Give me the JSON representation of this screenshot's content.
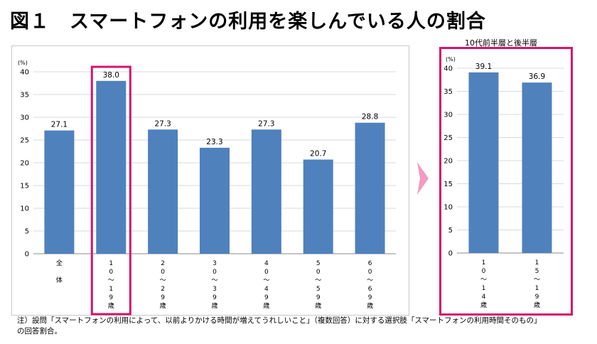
{
  "title": "図１　スマートフォンの利用を楽しんでいる人の割合",
  "right_header": "10代前半層と後半層",
  "note_lines": [
    "注）設問「スマートフォンの利用によって、以前よりかける時間が増えてうれしいこと」（複数回答）に対する選択肢「スマートフォンの利用時間そのもの」",
    "の回答割合。"
  ],
  "colors": {
    "bar": "#4f81bd",
    "highlight": "#d4156b",
    "arrow": "#f39bc2",
    "grid": "#d9d9d9"
  },
  "chart_data": [
    {
      "type": "bar",
      "unit_label": "(%)",
      "ylim": [
        0,
        40
      ],
      "yticks": [
        "0",
        "5",
        "10",
        "15",
        "20",
        "25",
        "30",
        "35",
        "40"
      ],
      "categories": [
        [
          "全",
          "",
          "体"
        ],
        [
          "1",
          "0",
          "～",
          "1",
          "9",
          "歳"
        ],
        [
          "2",
          "0",
          "～",
          "2",
          "9",
          "歳"
        ],
        [
          "3",
          "0",
          "～",
          "3",
          "9",
          "歳"
        ],
        [
          "4",
          "0",
          "～",
          "4",
          "9",
          "歳"
        ],
        [
          "5",
          "0",
          "～",
          "5",
          "9",
          "歳"
        ],
        [
          "6",
          "0",
          "～",
          "6",
          "9",
          "歳"
        ]
      ],
      "values": [
        27.1,
        38.0,
        27.3,
        23.3,
        27.3,
        20.7,
        28.8
      ],
      "data_labels": [
        "27.1",
        "38.0",
        "27.3",
        "23.3",
        "27.3",
        "20.7",
        "28.8"
      ],
      "highlighted_index": 1,
      "grid": true
    },
    {
      "type": "bar",
      "unit_label": "(%)",
      "ylim": [
        0,
        40
      ],
      "yticks": [
        "0",
        "5",
        "10",
        "15",
        "20",
        "25",
        "30",
        "35",
        "40"
      ],
      "categories": [
        [
          "1",
          "0",
          "～",
          "1",
          "4",
          "歳"
        ],
        [
          "1",
          "5",
          "～",
          "1",
          "9",
          "歳"
        ]
      ],
      "values": [
        39.1,
        36.9
      ],
      "data_labels": [
        "39.1",
        "36.9"
      ],
      "grid": true
    }
  ]
}
